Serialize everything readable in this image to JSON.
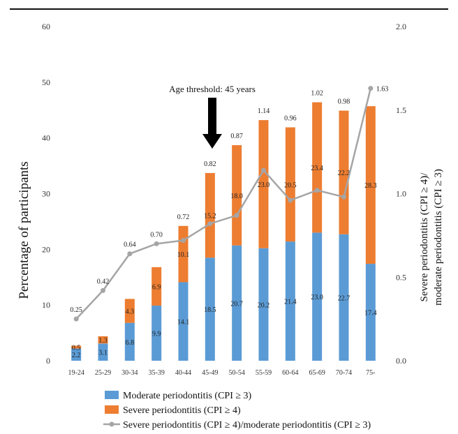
{
  "chart_data": {
    "type": "bar",
    "stacked": true,
    "categories": [
      "19-24",
      "25-29",
      "30-34",
      "35-39",
      "40-44",
      "45-49",
      "50-54",
      "55-59",
      "60-64",
      "65-69",
      "70-74",
      "75-"
    ],
    "series": [
      {
        "name": "Moderate periodontitis (CPI ≥ 3)",
        "type": "bar",
        "axis": "left",
        "color": "#5b9bd5",
        "values": [
          2.2,
          3.1,
          6.8,
          9.9,
          14.1,
          18.5,
          20.7,
          20.2,
          21.4,
          23.0,
          22.7,
          17.4
        ]
      },
      {
        "name": "Severe periodontitis (CPI ≥ 4)",
        "type": "bar",
        "axis": "left",
        "color": "#ed7d31",
        "values": [
          0.5,
          1.3,
          4.3,
          6.9,
          10.1,
          15.2,
          18.0,
          23.0,
          20.5,
          23.4,
          22.2,
          28.3
        ]
      },
      {
        "name": "Severe periodontitis (CPI ≥ 4)/moderate periodontitis (CPI ≥ 3)",
        "type": "line",
        "axis": "right",
        "color": "#a5a5a5",
        "values": [
          0.25,
          0.42,
          0.64,
          0.7,
          0.72,
          0.82,
          0.87,
          1.14,
          0.96,
          1.02,
          0.98,
          1.63
        ],
        "labels": [
          "0.25",
          "0.42",
          "0.64",
          "0.70",
          "0.72",
          "0.82",
          "0.87",
          "1.14",
          "0.96",
          "1.02",
          "0.98",
          "1.63"
        ]
      }
    ],
    "bar_labels": {
      "moderate": [
        "2.2",
        "3.1",
        "6.8",
        "9.9",
        "14.1",
        "18.5",
        "20.7",
        "20.2",
        "21.4",
        "23.0",
        "22.7",
        "17.4"
      ],
      "severe": [
        "0.5",
        "1.3",
        "4.3",
        "6.9",
        "10.1",
        "15.2",
        "18.0",
        "23.0",
        "20.5",
        "23.4",
        "22.2",
        "28.3"
      ]
    },
    "ylabel": "Percentage of participants",
    "y2label_line1": "Severe periodontitis (CPI ≥ 4)/",
    "y2label_line2": "moderate periodontitis (CPI ≥ 3)",
    "ylim": [
      0,
      60
    ],
    "y2lim": [
      0,
      2.0
    ],
    "yticks": [
      "0",
      "10",
      "20",
      "30",
      "40",
      "50",
      "60"
    ],
    "y2ticks": [
      "0.0",
      "0.5",
      "1.0",
      "1.5",
      "2.0"
    ],
    "annotation": {
      "text": "Age threshold: 45 years",
      "category": "45-49"
    },
    "grid": false,
    "legend_position": "bottom"
  }
}
